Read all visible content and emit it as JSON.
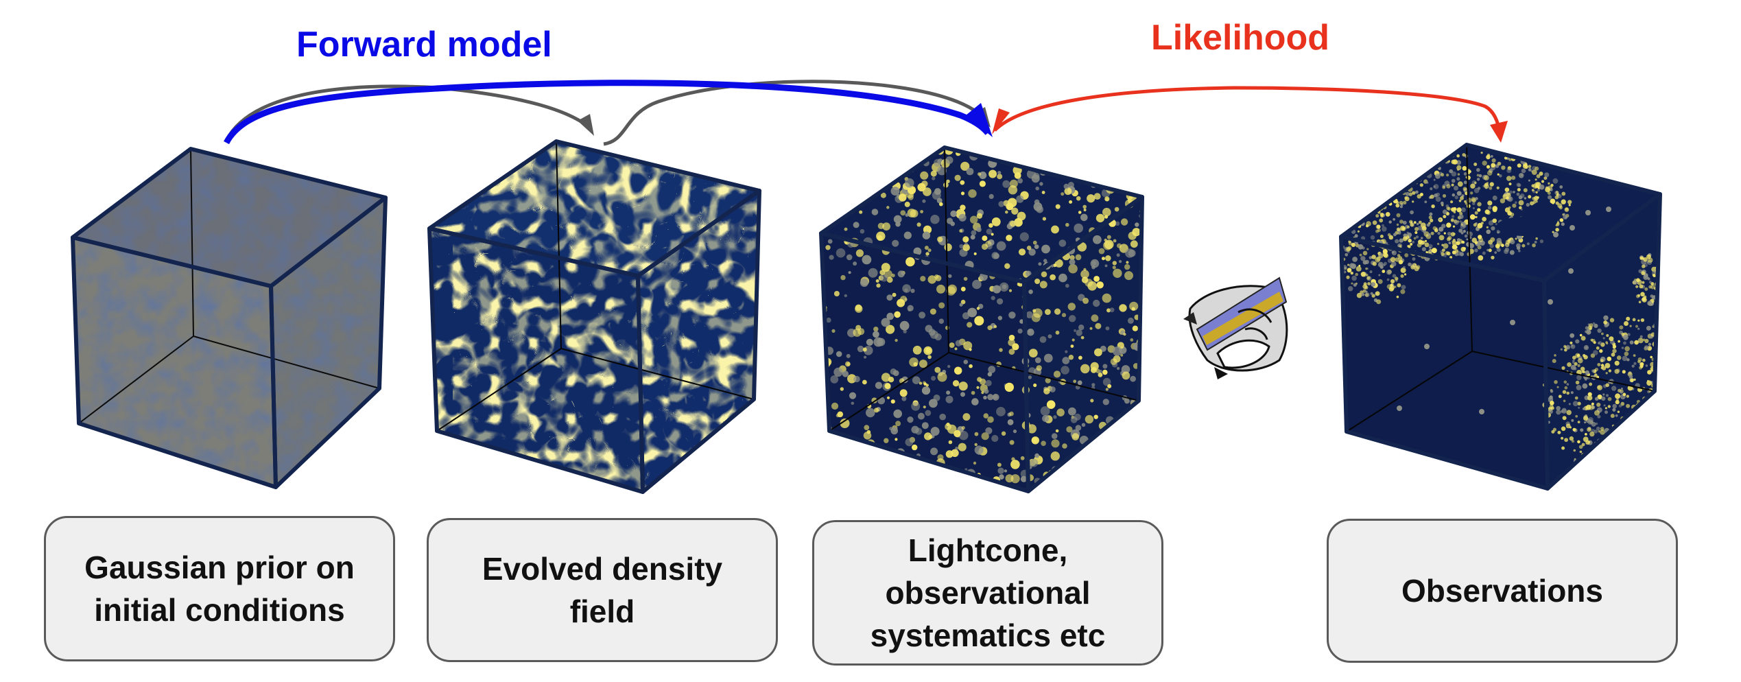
{
  "arrows": {
    "forward_model": {
      "label": "Forward model",
      "color": "#0a0ae6"
    },
    "likelihood": {
      "label": "Likelihood",
      "color": "#e8321e"
    },
    "intermediate_color": "#595959"
  },
  "stages": [
    {
      "label": "Gaussian prior on\ninitial conditions",
      "icon": "gaussian-noise-cube"
    },
    {
      "label": "Evolved density\nfield",
      "icon": "cosmic-web-cube"
    },
    {
      "label": "Lightcone,\nobservational\nsystematics etc",
      "icon": "galaxy-lightcone-cube"
    },
    {
      "label": "Observations",
      "icon": "survey-observations-cube"
    }
  ],
  "colors": {
    "cube_dark": "#0f1f4d",
    "cube_gray": "#8a8a80",
    "filament_yellow": "#f4e66a",
    "box_fill": "#efefef",
    "box_border": "#5a5a5a"
  },
  "telescope_icon": "telescope-satellite-icon"
}
